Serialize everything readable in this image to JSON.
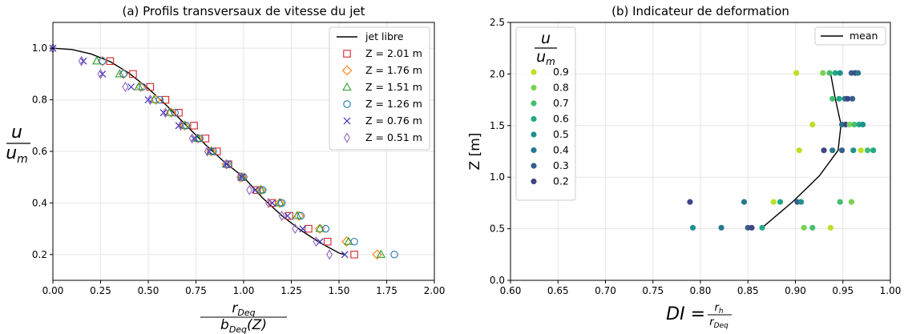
{
  "chart_data": [
    {
      "type": "scatter",
      "title": "(a) Profils transversaux de vitesse du jet",
      "xlabel": {
        "num": "r",
        "num_sub": "Deq",
        "den": "b",
        "den_sub": "Deq",
        "den_tail": "(Z)"
      },
      "ylabel": {
        "num": "u",
        "den": "u",
        "den_sub": "m"
      },
      "xlim": [
        0.0,
        2.0
      ],
      "ylim": [
        0.1,
        1.1
      ],
      "xticks": [
        "0.00",
        "0.25",
        "0.50",
        "0.75",
        "1.00",
        "1.25",
        "1.50",
        "1.75",
        "2.00"
      ],
      "yticks": [
        "0.2",
        "0.4",
        "0.6",
        "0.8",
        "1.0"
      ],
      "grid": true,
      "legend_position": "top-right",
      "line": {
        "name": "jet libre",
        "color": "#000000",
        "x": [
          0.0,
          0.1,
          0.2,
          0.3,
          0.4,
          0.5,
          0.6,
          0.7,
          0.8,
          0.9,
          1.0,
          1.1,
          1.2,
          1.3,
          1.4,
          1.5,
          1.53
        ],
        "y": [
          1.0,
          0.995,
          0.978,
          0.948,
          0.903,
          0.844,
          0.775,
          0.7,
          0.626,
          0.558,
          0.5,
          0.419,
          0.351,
          0.294,
          0.246,
          0.206,
          0.2
        ]
      },
      "series": [
        {
          "name": "Z = 2.01 m",
          "marker": "square",
          "color": "#d62728",
          "y": [
            0.95,
            0.9,
            0.85,
            0.8,
            0.75,
            0.7,
            0.65,
            0.6,
            0.55,
            0.5,
            0.45,
            0.4,
            0.35,
            0.3,
            0.25,
            0.2
          ],
          "x": [
            0.3,
            0.42,
            0.51,
            0.59,
            0.66,
            0.74,
            0.8,
            0.86,
            0.92,
            0.99,
            1.07,
            1.15,
            1.24,
            1.34,
            1.44,
            1.58
          ]
        },
        {
          "name": "Z = 1.76 m",
          "marker": "diamond",
          "color": "#ff7f0e",
          "y": [
            0.95,
            0.9,
            0.85,
            0.8,
            0.75,
            0.7,
            0.65,
            0.6,
            0.55,
            0.5,
            0.45,
            0.4,
            0.35,
            0.3,
            0.25,
            0.2
          ],
          "x": [
            0.26,
            0.37,
            0.46,
            0.54,
            0.62,
            0.69,
            0.76,
            0.83,
            0.91,
            0.99,
            1.09,
            1.19,
            1.29,
            1.4,
            1.54,
            1.7
          ]
        },
        {
          "name": "Z = 1.51 m",
          "marker": "triangle",
          "color": "#2ca02c",
          "y": [
            0.95,
            0.9,
            0.85,
            0.8,
            0.75,
            0.7,
            0.65,
            0.6,
            0.55,
            0.5,
            0.45,
            0.4,
            0.35,
            0.3,
            0.25,
            0.2
          ],
          "x": [
            0.23,
            0.35,
            0.45,
            0.53,
            0.61,
            0.69,
            0.76,
            0.83,
            0.91,
            0.99,
            1.09,
            1.19,
            1.28,
            1.4,
            1.55,
            1.72
          ]
        },
        {
          "name": "Z = 1.26 m",
          "marker": "circle",
          "color": "#1f77b4",
          "y": [
            0.95,
            0.9,
            0.85,
            0.8,
            0.75,
            0.7,
            0.65,
            0.6,
            0.55,
            0.5,
            0.45,
            0.4,
            0.35,
            0.3,
            0.25,
            0.2
          ],
          "x": [
            0.26,
            0.37,
            0.47,
            0.56,
            0.64,
            0.7,
            0.77,
            0.84,
            0.92,
            1.0,
            1.1,
            1.2,
            1.3,
            1.43,
            1.58,
            1.79
          ]
        },
        {
          "name": "Z = 0.76 m",
          "marker": "x",
          "color": "#3a2fbd",
          "y": [
            1.0,
            0.95,
            0.9,
            0.85,
            0.8,
            0.75,
            0.7,
            0.65,
            0.6,
            0.55,
            0.5,
            0.45,
            0.4,
            0.35,
            0.3,
            0.25,
            0.2
          ],
          "x": [
            0.0,
            0.16,
            0.26,
            0.41,
            0.5,
            0.58,
            0.66,
            0.74,
            0.82,
            0.91,
            0.99,
            1.06,
            1.15,
            1.23,
            1.31,
            1.4,
            1.53
          ]
        },
        {
          "name": "Z = 0.51 m",
          "marker": "thin-diamond",
          "color": "#9467bd",
          "y": [
            1.0,
            0.95,
            0.9,
            0.85,
            0.8,
            0.75,
            0.7,
            0.65,
            0.6,
            0.55,
            0.5,
            0.45,
            0.4,
            0.35,
            0.3,
            0.25,
            0.2
          ],
          "x": [
            0.0,
            0.15,
            0.25,
            0.38,
            0.51,
            0.59,
            0.67,
            0.73,
            0.81,
            0.91,
            0.98,
            1.03,
            1.13,
            1.2,
            1.27,
            1.38,
            1.45
          ]
        }
      ]
    },
    {
      "type": "scatter",
      "title": "(b) Indicateur de deformation",
      "xlabel": {
        "prefix": "DI = ",
        "num": "r",
        "num_sub": "h",
        "den": "r",
        "den_sub": "Deq"
      },
      "ylabel": "Z [m]",
      "xlim": [
        0.6,
        1.0
      ],
      "ylim": [
        0.0,
        2.5
      ],
      "xticks": [
        "0.60",
        "0.65",
        "0.70",
        "0.75",
        "0.80",
        "0.85",
        "0.90",
        "0.95",
        "1.00"
      ],
      "yticks": [
        "0.0",
        "0.5",
        "1.0",
        "1.5",
        "2.0",
        "2.5"
      ],
      "grid": true,
      "legend_position": "top-right",
      "line": {
        "name": "mean",
        "color": "#000000",
        "x": [
          0.865,
          0.897,
          0.925,
          0.945,
          0.948,
          0.942,
          0.937
        ],
        "y": [
          0.51,
          0.76,
          1.01,
          1.26,
          1.51,
          1.76,
          2.01
        ]
      },
      "colorbar_legend": {
        "title_num": "u",
        "title_den": "u",
        "title_den_sub": "m",
        "levels": [
          {
            "label": "0.9",
            "color": "#bddf26"
          },
          {
            "label": "0.8",
            "color": "#7ad151"
          },
          {
            "label": "0.7",
            "color": "#44bf70"
          },
          {
            "label": "0.6",
            "color": "#22a884"
          },
          {
            "label": "0.5",
            "color": "#21918c"
          },
          {
            "label": "0.4",
            "color": "#2a788e"
          },
          {
            "label": "0.3",
            "color": "#355f8d"
          },
          {
            "label": "0.2",
            "color": "#414487"
          }
        ]
      },
      "points": [
        {
          "z": 2.01,
          "di": 0.901,
          "level": 0.9
        },
        {
          "z": 2.01,
          "di": 0.929,
          "level": 0.8
        },
        {
          "z": 2.01,
          "di": 0.936,
          "level": 0.7
        },
        {
          "z": 2.01,
          "di": 0.942,
          "level": 0.6
        },
        {
          "z": 2.01,
          "di": 0.947,
          "level": 0.5
        },
        {
          "z": 2.01,
          "di": 0.959,
          "level": 0.3
        },
        {
          "z": 2.01,
          "di": 0.963,
          "level": 0.2
        },
        {
          "z": 2.01,
          "di": 0.966,
          "level": 0.4
        },
        {
          "z": 1.76,
          "di": 0.939,
          "level": 0.7
        },
        {
          "z": 1.76,
          "di": 0.946,
          "level": 0.6
        },
        {
          "z": 1.76,
          "di": 0.952,
          "level": 0.4
        },
        {
          "z": 1.76,
          "di": 0.955,
          "level": 0.2
        },
        {
          "z": 1.76,
          "di": 0.96,
          "level": 0.3
        },
        {
          "z": 1.51,
          "di": 0.918,
          "level": 0.9
        },
        {
          "z": 1.51,
          "di": 0.949,
          "level": 0.4
        },
        {
          "z": 1.51,
          "di": 0.953,
          "level": 0.2
        },
        {
          "z": 1.51,
          "di": 0.957,
          "level": 0.8
        },
        {
          "z": 1.51,
          "di": 0.962,
          "level": 0.7
        },
        {
          "z": 1.51,
          "di": 0.967,
          "level": 0.6
        },
        {
          "z": 1.51,
          "di": 0.971,
          "level": 0.5
        },
        {
          "z": 1.26,
          "di": 0.904,
          "level": 0.9
        },
        {
          "z": 1.26,
          "di": 0.93,
          "level": 0.2
        },
        {
          "z": 1.26,
          "di": 0.939,
          "level": 0.4
        },
        {
          "z": 1.26,
          "di": 0.949,
          "level": 0.3
        },
        {
          "z": 1.26,
          "di": 0.961,
          "level": 0.5
        },
        {
          "z": 1.26,
          "di": 0.969,
          "level": 0.9
        },
        {
          "z": 1.26,
          "di": 0.976,
          "level": 0.7
        },
        {
          "z": 1.26,
          "di": 0.982,
          "level": 0.6
        },
        {
          "z": 0.76,
          "di": 0.789,
          "level": 0.2
        },
        {
          "z": 0.76,
          "di": 0.846,
          "level": 0.4
        },
        {
          "z": 0.76,
          "di": 0.877,
          "level": 0.9
        },
        {
          "z": 0.76,
          "di": 0.884,
          "level": 0.6
        },
        {
          "z": 0.76,
          "di": 0.902,
          "level": 0.3
        },
        {
          "z": 0.76,
          "di": 0.906,
          "level": 0.5
        },
        {
          "z": 0.76,
          "di": 0.947,
          "level": 0.7
        },
        {
          "z": 0.76,
          "di": 0.959,
          "level": 0.8
        },
        {
          "z": 0.51,
          "di": 0.792,
          "level": 0.5
        },
        {
          "z": 0.51,
          "di": 0.822,
          "level": 0.4
        },
        {
          "z": 0.51,
          "di": 0.85,
          "level": 0.3
        },
        {
          "z": 0.51,
          "di": 0.854,
          "level": 0.2
        },
        {
          "z": 0.51,
          "di": 0.865,
          "level": 0.6
        },
        {
          "z": 0.51,
          "di": 0.909,
          "level": 0.8
        },
        {
          "z": 0.51,
          "di": 0.918,
          "level": 0.7
        },
        {
          "z": 0.51,
          "di": 0.937,
          "level": 0.9
        }
      ]
    }
  ]
}
